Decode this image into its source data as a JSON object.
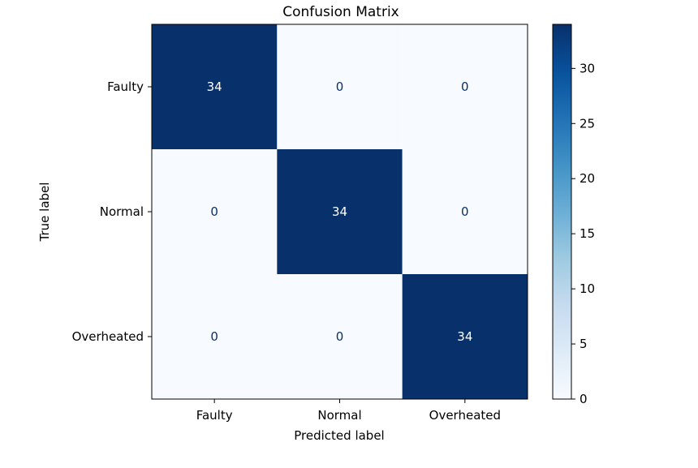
{
  "chart_data": {
    "type": "heatmap",
    "title": "Confusion Matrix",
    "xlabel": "Predicted label",
    "ylabel": "True label",
    "x_categories": [
      "Faulty",
      "Normal",
      "Overheated"
    ],
    "y_categories": [
      "Faulty",
      "Normal",
      "Overheated"
    ],
    "values": [
      [
        34,
        0,
        0
      ],
      [
        0,
        34,
        0
      ],
      [
        0,
        0,
        34
      ]
    ],
    "colormap": "Blues",
    "color_low": "#f7fbff",
    "color_high": "#08306b",
    "text_on_dark": "#ffffff",
    "text_on_light": "#08306b",
    "colorbar": {
      "min": 0,
      "max": 34,
      "ticks": [
        0,
        5,
        10,
        15,
        20,
        25,
        30
      ]
    }
  }
}
